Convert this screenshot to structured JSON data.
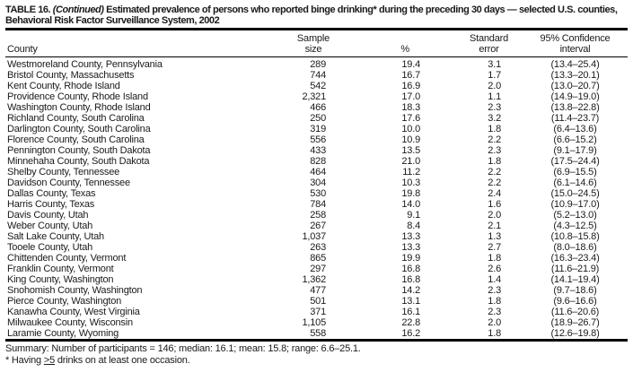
{
  "title": {
    "label": "TABLE 16.",
    "continued": "(Continued)",
    "text": "Estimated prevalence of persons who reported binge drinking* during the preceding 30 days — selected U.S. counties, Behavioral Risk Factor Surveillance System, 2002"
  },
  "columns": [
    {
      "key": "county",
      "label": "County"
    },
    {
      "key": "sample_size",
      "label": "Sample\nsize"
    },
    {
      "key": "pct",
      "label": "%"
    },
    {
      "key": "se",
      "label": "Standard\nerror"
    },
    {
      "key": "ci",
      "label": "95% Confidence\ninterval"
    }
  ],
  "rows": [
    {
      "county": "Westmoreland County, Pennsylvania",
      "sample_size": "289",
      "pct": "19.4",
      "se": "3.1",
      "ci": "(13.4–25.4)"
    },
    {
      "county": "Bristol County, Massachusetts",
      "sample_size": "744",
      "pct": "16.7",
      "se": "1.7",
      "ci": "(13.3–20.1)"
    },
    {
      "county": "Kent County, Rhode Island",
      "sample_size": "542",
      "pct": "16.9",
      "se": "2.0",
      "ci": "(13.0–20.7)"
    },
    {
      "county": "Providence County, Rhode Island",
      "sample_size": "2,321",
      "pct": "17.0",
      "se": "1.1",
      "ci": "(14.9–19.0)"
    },
    {
      "county": "Washington County, Rhode Island",
      "sample_size": "466",
      "pct": "18.3",
      "se": "2.3",
      "ci": "(13.8–22.8)"
    },
    {
      "county": "Richland County, South Carolina",
      "sample_size": "250",
      "pct": "17.6",
      "se": "3.2",
      "ci": "(11.4–23.7)"
    },
    {
      "county": "Darlington County, South Carolina",
      "sample_size": "319",
      "pct": "10.0",
      "se": "1.8",
      "ci": "(6.4–13.6)"
    },
    {
      "county": "Florence County, South Carolina",
      "sample_size": "556",
      "pct": "10.9",
      "se": "2.2",
      "ci": "(6.6–15.2)"
    },
    {
      "county": "Pennington County, South Dakota",
      "sample_size": "433",
      "pct": "13.5",
      "se": "2.3",
      "ci": "(9.1–17.9)"
    },
    {
      "county": "Minnehaha County, South Dakota",
      "sample_size": "828",
      "pct": "21.0",
      "se": "1.8",
      "ci": "(17.5–24.4)"
    },
    {
      "county": "Shelby County, Tennessee",
      "sample_size": "464",
      "pct": "11.2",
      "se": "2.2",
      "ci": "(6.9–15.5)"
    },
    {
      "county": "Davidson County, Tennessee",
      "sample_size": "304",
      "pct": "10.3",
      "se": "2.2",
      "ci": "(6.1–14.6)"
    },
    {
      "county": "Dallas County, Texas",
      "sample_size": "530",
      "pct": "19.8",
      "se": "2.4",
      "ci": "(15.0–24.5)"
    },
    {
      "county": "Harris County, Texas",
      "sample_size": "784",
      "pct": "14.0",
      "se": "1.6",
      "ci": "(10.9–17.0)"
    },
    {
      "county": "Davis County, Utah",
      "sample_size": "258",
      "pct": "9.1",
      "se": "2.0",
      "ci": "(5.2–13.0)"
    },
    {
      "county": "Weber County, Utah",
      "sample_size": "267",
      "pct": "8.4",
      "se": "2.1",
      "ci": "(4.3–12.5)"
    },
    {
      "county": "Salt Lake County, Utah",
      "sample_size": "1,037",
      "pct": "13.3",
      "se": "1.3",
      "ci": "(10.8–15.8)"
    },
    {
      "county": "Tooele County, Utah",
      "sample_size": "263",
      "pct": "13.3",
      "se": "2.7",
      "ci": "(8.0–18.6)"
    },
    {
      "county": "Chittenden County, Vermont",
      "sample_size": "865",
      "pct": "19.9",
      "se": "1.8",
      "ci": "(16.3–23.4)"
    },
    {
      "county": "Franklin County, Vermont",
      "sample_size": "297",
      "pct": "16.8",
      "se": "2.6",
      "ci": "(11.6–21.9)"
    },
    {
      "county": "King County, Washington",
      "sample_size": "1,362",
      "pct": "16.8",
      "se": "1.4",
      "ci": "(14.1–19.4)"
    },
    {
      "county": "Snohomish County, Washington",
      "sample_size": "477",
      "pct": "14.2",
      "se": "2.3",
      "ci": "(9.7–18.6)"
    },
    {
      "county": "Pierce County, Washington",
      "sample_size": "501",
      "pct": "13.1",
      "se": "1.8",
      "ci": "(9.6–16.6)"
    },
    {
      "county": "Kanawha County, West Virginia",
      "sample_size": "371",
      "pct": "16.1",
      "se": "2.3",
      "ci": "(11.6–20.6)"
    },
    {
      "county": "Milwaukee County, Wisconsin",
      "sample_size": "1,105",
      "pct": "22.8",
      "se": "2.0",
      "ci": "(18.9–26.7)"
    },
    {
      "county": "Laramie County, Wyoming",
      "sample_size": "558",
      "pct": "16.2",
      "se": "1.8",
      "ci": "(12.6–19.8)"
    }
  ],
  "summary": "Summary: Number of participants = 146; median: 16.1; mean: 15.8; range: 6.6–25.1.",
  "footnote": {
    "prefix": "* Having ",
    "underlined": ">5",
    "suffix": " drinks on at least one occasion."
  }
}
